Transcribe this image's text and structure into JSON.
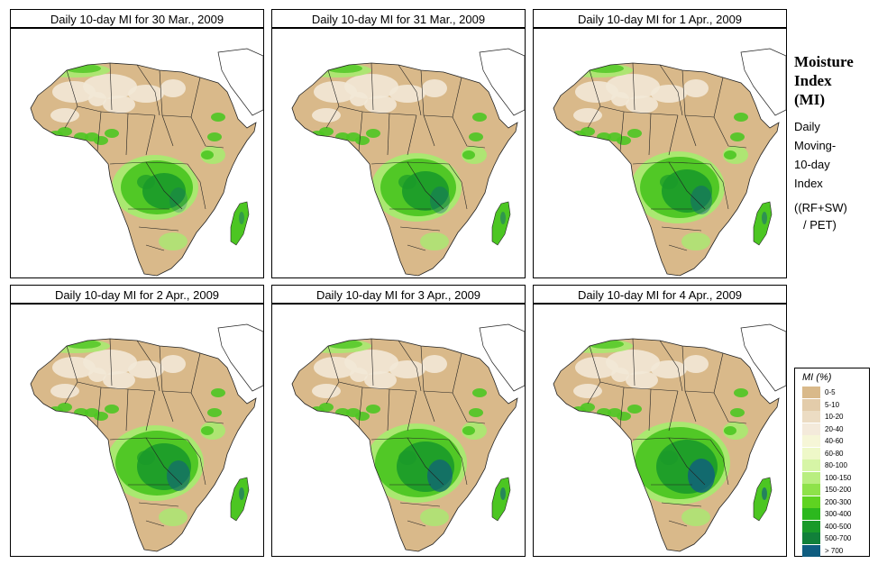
{
  "panels": [
    {
      "title": "Daily 10-day MI for  30 Mar., 2009"
    },
    {
      "title": "Daily 10-day MI for  31 Mar., 2009"
    },
    {
      "title": "Daily 10-day MI for  1 Apr., 2009"
    },
    {
      "title": "Daily 10-day MI for  2 Apr., 2009"
    },
    {
      "title": "Daily 10-day MI for  3 Apr., 2009"
    },
    {
      "title": "Daily 10-day MI for  4 Apr., 2009"
    }
  ],
  "side": {
    "title_line1": "Moisture",
    "title_line2": "Index",
    "title_line3": "(MI)",
    "desc_line1": "Daily",
    "desc_line2": "Moving-",
    "desc_line3": "10-day",
    "desc_line4": "Index",
    "formula_line1": "((RF+SW)",
    "formula_line2": "/ PET)"
  },
  "legend": {
    "title": "MI (%)",
    "items": [
      {
        "label": "0-5",
        "color": "#d9b98a"
      },
      {
        "label": "5-10",
        "color": "#e3ccaa"
      },
      {
        "label": "10-20",
        "color": "#ecdcc3"
      },
      {
        "label": "20-40",
        "color": "#f4eadb"
      },
      {
        "label": "40-60",
        "color": "#f6f6d7"
      },
      {
        "label": "60-80",
        "color": "#eef8c8"
      },
      {
        "label": "80-100",
        "color": "#d6f5a6"
      },
      {
        "label": "100-150",
        "color": "#b9ee80"
      },
      {
        "label": "150-200",
        "color": "#8ee24a"
      },
      {
        "label": "200-300",
        "color": "#5fd321"
      },
      {
        "label": "300-400",
        "color": "#2cb81e"
      },
      {
        "label": "400-500",
        "color": "#1a9a2a"
      },
      {
        "label": "500-700",
        "color": "#11803a"
      },
      {
        "label": "> 700",
        "color": "#0f5d80"
      }
    ]
  },
  "colors": {
    "land": "#d9b98a",
    "desert_light": "#f2e8d6",
    "green_light": "#a8ea70",
    "green": "#4cc622",
    "green_dark": "#1a9a2a",
    "blue": "#0f5d80",
    "boundary": "#222222"
  }
}
